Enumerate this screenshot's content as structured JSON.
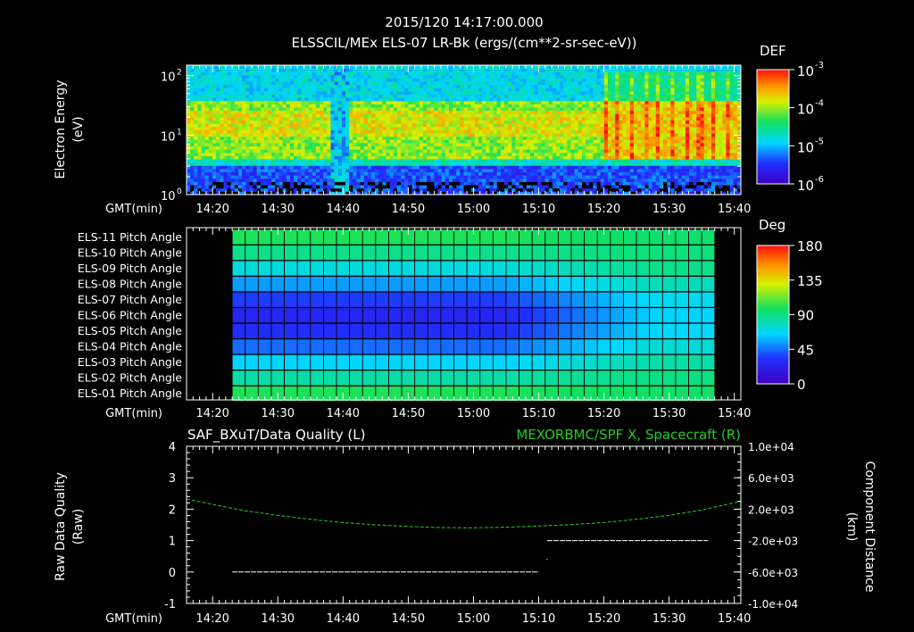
{
  "title": {
    "line1": "2015/120 14:17:00.000",
    "line2": "ELSSCIL/MEx ELS-07 LR-Bk  (ergs/(cm**2-sr-sec-eV))"
  },
  "time_axis": {
    "label": "GMT(min)",
    "ticks": [
      "14:20",
      "14:30",
      "14:40",
      "14:50",
      "15:00",
      "15:10",
      "15:20",
      "15:30",
      "15:40"
    ],
    "range_min": [
      16,
      101
    ]
  },
  "chart_data": [
    {
      "type": "heatmap",
      "name": "electron-energy-spectrogram",
      "ylabel_1": "Electron Energy",
      "ylabel_2": "(eV)",
      "y_scale": "log",
      "ylim": [
        1,
        150
      ],
      "y_ticks": [
        {
          "v": 1,
          "base": "10",
          "exp": "0"
        },
        {
          "v": 10,
          "base": "10",
          "exp": "1"
        },
        {
          "v": 100,
          "base": "10",
          "exp": "2"
        }
      ],
      "colorbar": {
        "title": "DEF",
        "scale": "log",
        "range": [
          1e-06,
          0.001
        ],
        "labels": [
          {
            "v": 0.001,
            "base": "10",
            "exp": "-3"
          },
          {
            "v": 0.0001,
            "base": "10",
            "exp": "-4"
          },
          {
            "v": 1e-05,
            "base": "10",
            "exp": "-5"
          },
          {
            "v": 1e-06,
            "base": "10",
            "exp": "-6"
          }
        ]
      },
      "features": {
        "bright_band_eV": [
          4,
          40
        ],
        "data_gap_min": [
          38,
          41
        ],
        "enhanced_after_min": 80
      }
    },
    {
      "type": "heatmap",
      "name": "pitch-angle-grid",
      "rows": [
        "ELS-11 Pitch Angle",
        "ELS-10 Pitch Angle",
        "ELS-09 Pitch Angle",
        "ELS-08 Pitch Angle",
        "ELS-07 Pitch Angle",
        "ELS-06 Pitch Angle",
        "ELS-05 Pitch Angle",
        "ELS-04 Pitch Angle",
        "ELS-03 Pitch Angle",
        "ELS-02 Pitch Angle",
        "ELS-01 Pitch Angle"
      ],
      "row_pitch_start_deg": [
        100,
        88,
        70,
        50,
        30,
        20,
        25,
        40,
        62,
        82,
        100
      ],
      "row_pitch_end_deg": [
        95,
        92,
        88,
        78,
        66,
        62,
        64,
        72,
        82,
        90,
        96
      ],
      "x_range_min": [
        23,
        96
      ],
      "bin_width_min": 2,
      "colorbar": {
        "title": "Deg",
        "range": [
          0,
          180
        ],
        "labels": [
          "180",
          "135",
          "90",
          "45",
          "0"
        ]
      }
    },
    {
      "type": "line",
      "name": "data-quality-and-position",
      "title_left": "SAF_BXuT/Data Quality (L)",
      "title_right": "MEXORBMC/SPF X, Spacecraft (R)",
      "ylabel_left_1": "Raw Data Quality",
      "ylabel_left_2": "(Raw)",
      "ylabel_right_1": "Component Distance",
      "ylabel_right_2": "(km)",
      "ylim_left": [
        -1,
        4
      ],
      "yticks_left": [
        "4",
        "3",
        "2",
        "1",
        "0",
        "-1"
      ],
      "ylim_right": [
        -10000,
        10000
      ],
      "yticks_right": [
        "1.0e+04",
        "6.0e+03",
        "2.0e+03",
        "-2.0e+03",
        "-6.0e+03",
        "-1.0e+04"
      ],
      "series": [
        {
          "name": "Data Quality",
          "color": "#ffffff",
          "segments": [
            {
              "x0": 23,
              "x1": 70,
              "y": 0
            },
            {
              "x0": 71.3,
              "x1": 96,
              "y": 1
            }
          ]
        },
        {
          "name": "SPF X",
          "color": "#22cc22",
          "x": [
            16,
            20,
            25,
            30,
            35,
            40,
            45,
            50,
            55,
            60,
            65,
            70,
            75,
            80,
            85,
            90,
            95,
            101
          ],
          "y": [
            3300,
            2600,
            1800,
            1200,
            700,
            300,
            0,
            -200,
            -350,
            -380,
            -300,
            -150,
            50,
            300,
            700,
            1200,
            1900,
            3000
          ]
        }
      ]
    }
  ],
  "colors": {
    "background": "#000000",
    "axis": "#ffffff",
    "grid": "#000000",
    "position_line": "#22cc22"
  }
}
